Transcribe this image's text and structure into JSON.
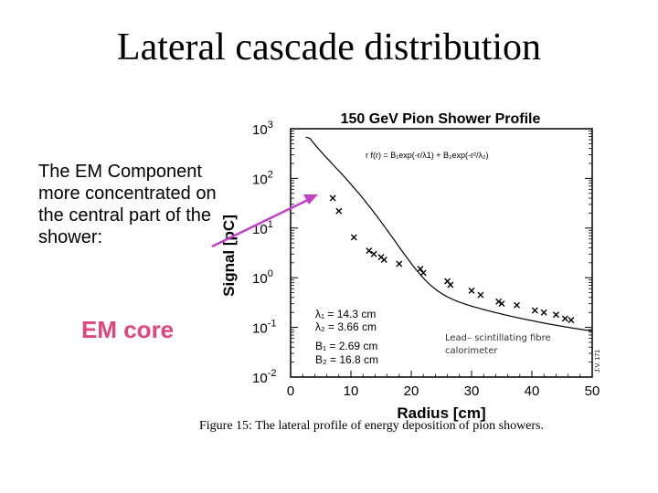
{
  "slide": {
    "title": "Lateral cascade distribution",
    "left_text": "The EM Component more concentrated on the central part of the shower:",
    "highlight": "EM core",
    "highlight_color": "#e0457b",
    "annotation": "Lead– scintillating fibre calorimeter"
  },
  "figure": {
    "caption": "Figure 15: The lateral profile of energy deposition of pion showers.",
    "formula": "r f(r) = B₁exp(-r/λ1) + B₂exp(-r²/λ₂)",
    "parameters": [
      "λ₁ = 14.3 cm",
      "λ₂ = 3.66 cm",
      "B₁ = 2.69 cm",
      "B₂ = 16.8 cm"
    ],
    "stamp": "J.V. 171"
  },
  "arrow_color": "#c040c8",
  "chart_data": {
    "type": "scatter",
    "title": "150 GeV Pion Shower Profile",
    "xlabel": "Radius [cm]",
    "ylabel": "Signal [pC]",
    "xlim": [
      0,
      50
    ],
    "ylim_log10": [
      -2,
      3
    ],
    "x_ticks": [
      "0",
      "10",
      "20",
      "30",
      "40",
      "50"
    ],
    "y_ticks": [
      "10-2",
      "10-1",
      "100",
      "101",
      "102",
      "103"
    ],
    "fit_params": {
      "B1": 2.69,
      "lambda1": 14.3,
      "B2": 16.8,
      "lambda2": 3.66
    },
    "points": [
      {
        "x": 7.0,
        "y": 40.0
      },
      {
        "x": 8.0,
        "y": 22.0
      },
      {
        "x": 10.5,
        "y": 6.5
      },
      {
        "x": 13.0,
        "y": 3.5
      },
      {
        "x": 13.8,
        "y": 3.0
      },
      {
        "x": 15.0,
        "y": 2.6
      },
      {
        "x": 15.5,
        "y": 2.3
      },
      {
        "x": 18.0,
        "y": 1.9
      },
      {
        "x": 21.5,
        "y": 1.5
      },
      {
        "x": 22.0,
        "y": 1.25
      },
      {
        "x": 26.0,
        "y": 0.85
      },
      {
        "x": 26.5,
        "y": 0.72
      },
      {
        "x": 30.0,
        "y": 0.55
      },
      {
        "x": 31.5,
        "y": 0.45
      },
      {
        "x": 34.5,
        "y": 0.33
      },
      {
        "x": 35.0,
        "y": 0.3
      },
      {
        "x": 37.5,
        "y": 0.28
      },
      {
        "x": 40.5,
        "y": 0.22
      },
      {
        "x": 42.0,
        "y": 0.2
      },
      {
        "x": 44.0,
        "y": 0.18
      },
      {
        "x": 45.5,
        "y": 0.15
      },
      {
        "x": 46.5,
        "y": 0.14
      }
    ]
  }
}
